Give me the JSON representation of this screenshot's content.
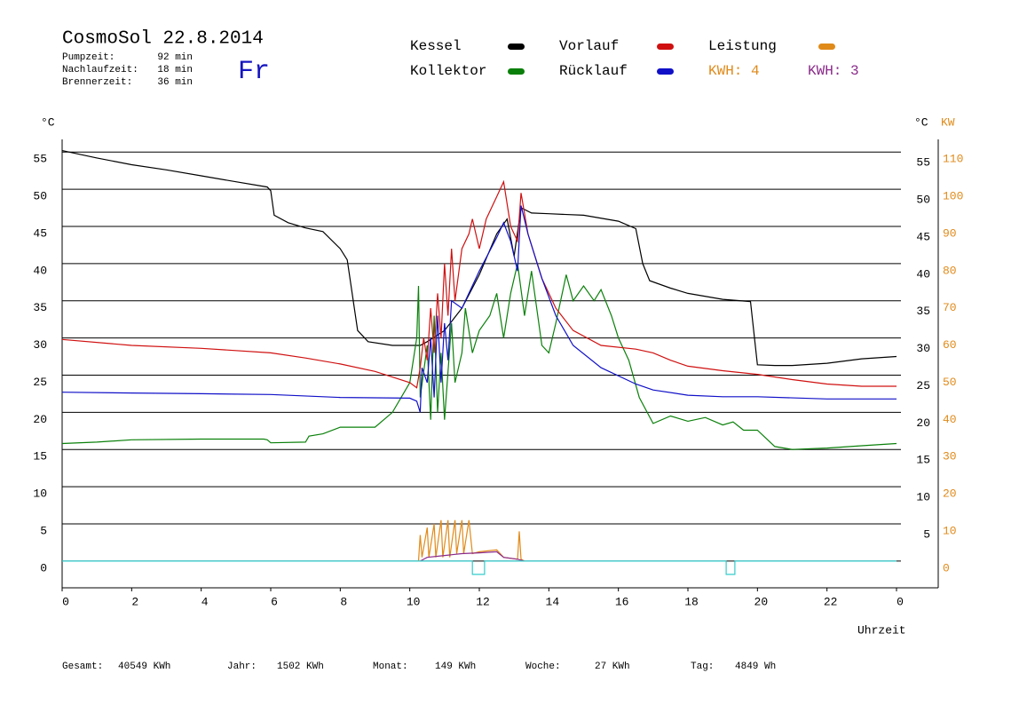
{
  "chart_data": {
    "type": "line",
    "title": "CosmoSol 22.8.2014",
    "weekday": "Fr",
    "times": [
      {
        "label": "Pumpzeit:",
        "value": "92 min"
      },
      {
        "label": "Nachlaufzeit:",
        "value": "18 min"
      },
      {
        "label": "Brennerzeit:",
        "value": "36 min"
      }
    ],
    "kwh_labels": [
      {
        "text": "KWH: 4",
        "color": "#e08a1a"
      },
      {
        "text": "KWH: 3",
        "color": "#8a2a8a"
      }
    ],
    "y_label": "°C",
    "y_right_label": "°C",
    "y2_label": "KW",
    "x_label": "Uhrzeit",
    "xlim": [
      0,
      24
    ],
    "xticks": [
      0,
      2,
      4,
      6,
      8,
      10,
      12,
      14,
      16,
      18,
      20,
      22,
      {
        "value": 24,
        "label": "0"
      }
    ],
    "ylim": [
      -3.6,
      56.7
    ],
    "yticks": [
      0,
      5,
      10,
      15,
      20,
      25,
      30,
      35,
      40,
      45,
      50,
      55
    ],
    "yticks_right": [
      5,
      10,
      15,
      20,
      25,
      30,
      35,
      40,
      45,
      50,
      55
    ],
    "y2lim": [
      -7.2,
      113.4
    ],
    "y2ticks": [
      0,
      10,
      20,
      30,
      40,
      50,
      60,
      70,
      80,
      90,
      100,
      110
    ],
    "grid": true,
    "series": [
      {
        "name": "Kessel",
        "color": "#000000",
        "x": [
          0,
          1,
          2,
          3,
          4,
          5,
          5.9,
          6.0,
          6.1,
          6.5,
          7,
          7.5,
          8,
          8.2,
          8.5,
          8.8,
          9.5,
          10.3,
          10.5,
          11,
          11.5,
          12,
          12.5,
          12.8,
          13.0,
          13.2,
          13.5,
          14,
          15,
          16,
          16.5,
          16.7,
          16.9,
          17.5,
          18,
          19,
          19.8,
          20.0,
          20.5,
          21,
          22,
          23,
          24
        ],
        "values": [
          55.2,
          54.2,
          53.3,
          52.6,
          51.8,
          51,
          50.3,
          49.8,
          46.5,
          45.5,
          44.8,
          44.3,
          42,
          40.5,
          31,
          29.5,
          29,
          29,
          29.5,
          31,
          34,
          38.5,
          44,
          46,
          41,
          47.5,
          46.8,
          46.7,
          46.5,
          45.7,
          44.7,
          40,
          37.7,
          36.7,
          36,
          35.2,
          34.9,
          26.4,
          26.3,
          26.3,
          26.6,
          27.2,
          27.5
        ]
      },
      {
        "name": "Kollektor",
        "color": "#0a800a",
        "x": [
          0,
          1,
          2,
          4,
          5.8,
          5.9,
          6,
          7,
          7.1,
          7.5,
          8,
          9,
          9.5,
          10,
          10.2,
          10.25,
          10.3,
          10.5,
          10.6,
          10.7,
          10.8,
          10.9,
          11,
          11.2,
          11.3,
          11.5,
          11.6,
          11.8,
          12,
          12.3,
          12.5,
          12.7,
          12.9,
          13.1,
          13.3,
          13.5,
          13.8,
          14,
          14.2,
          14.5,
          14.7,
          15,
          15.3,
          15.5,
          15.8,
          16,
          16.3,
          16.6,
          17,
          17.5,
          18,
          18.5,
          19,
          19.3,
          19.6,
          20,
          20.5,
          21,
          22,
          23,
          24
        ],
        "values": [
          15.8,
          16,
          16.3,
          16.4,
          16.4,
          16.3,
          15.9,
          16,
          16.8,
          17.1,
          18,
          18,
          20,
          24,
          30,
          37,
          22,
          29,
          19,
          33,
          20,
          28,
          19,
          32,
          24,
          28,
          34,
          28,
          31,
          33,
          36,
          30,
          36,
          40,
          33,
          39,
          29,
          28,
          32,
          38.5,
          35,
          37,
          35,
          36.5,
          33,
          30,
          27,
          22,
          18.5,
          19.5,
          18.8,
          19.3,
          18.3,
          18.7,
          17.6,
          17.6,
          15.4,
          15,
          15.2,
          15.5,
          15.8
        ]
      },
      {
        "name": "Vorlauf",
        "color": "#d01010",
        "x": [
          0,
          2,
          4,
          6,
          7,
          8,
          9,
          10,
          10.2,
          10.3,
          10.4,
          10.5,
          10.6,
          10.7,
          10.8,
          10.9,
          11,
          11.1,
          11.2,
          11.3,
          11.5,
          11.7,
          11.8,
          12,
          12.2,
          12.5,
          12.7,
          12.9,
          13.1,
          13.2,
          13.4,
          13.8,
          14.2,
          14.7,
          15.5,
          16.5,
          17,
          17.5,
          18,
          19,
          20,
          21,
          22,
          23,
          24
        ],
        "values": [
          29.8,
          29,
          28.6,
          28,
          27.3,
          26.5,
          25.5,
          24,
          23.3,
          26,
          30,
          27,
          34,
          28,
          36,
          30,
          40,
          33,
          42,
          35,
          42,
          44,
          46,
          42,
          46,
          49,
          51,
          45,
          43,
          49.5,
          44,
          38,
          34,
          31,
          29,
          28.5,
          28,
          27,
          26.2,
          25.6,
          25.1,
          24.4,
          23.8,
          23.5,
          23.5
        ]
      },
      {
        "name": "Rücklauf",
        "color": "#1010c8",
        "x": [
          0,
          2,
          4,
          6,
          8,
          10,
          10.2,
          10.3,
          10.35,
          10.5,
          10.6,
          10.7,
          10.8,
          10.9,
          11,
          11.1,
          11.2,
          11.5,
          12,
          12.5,
          12.7,
          12.9,
          13.1,
          13.2,
          13.4,
          13.8,
          14.2,
          14.7,
          15.5,
          16.5,
          17,
          18,
          19,
          20,
          22,
          24
        ],
        "values": [
          22.7,
          22.6,
          22.5,
          22.4,
          22.0,
          21.9,
          21.5,
          20,
          26,
          24,
          30,
          22,
          33,
          24,
          32,
          27,
          35,
          34,
          39,
          43.5,
          45.5,
          43,
          39,
          47.8,
          44,
          38,
          33,
          29,
          26,
          23.8,
          23,
          22.3,
          22.1,
          22.1,
          21.8,
          21.8
        ]
      },
      {
        "name": "Leistung",
        "color": "#e08a1a",
        "axis": "y2",
        "x": [
          10.25,
          10.3,
          10.35,
          10.5,
          10.55,
          10.7,
          10.75,
          10.9,
          10.95,
          11.1,
          11.15,
          11.3,
          11.35,
          11.5,
          11.55,
          11.7,
          11.8,
          12.0,
          12.5,
          12.7,
          13.1,
          13.15,
          13.2,
          13.3
        ],
        "values": [
          0,
          7,
          1,
          9,
          1,
          10,
          1,
          11,
          1,
          11,
          1,
          11,
          2,
          11,
          2,
          11,
          2,
          2.5,
          3,
          1,
          0.5,
          8,
          0.5,
          0
        ]
      },
      {
        "color": "#8a2a8a",
        "axis": "y2",
        "x": [
          10.3,
          10.5,
          11,
          11.5,
          12,
          12.5,
          12.7,
          13.1,
          13.3
        ],
        "values": [
          0,
          1,
          1.5,
          2,
          2.2,
          2.5,
          1,
          0.5,
          0
        ]
      },
      {
        "color": "#33cccc",
        "x": [
          0,
          11.8,
          11.8,
          12.15,
          12.15,
          19.1,
          19.1,
          19.35,
          19.35,
          24
        ],
        "values": [
          0,
          0,
          -1.8,
          -1.8,
          0,
          0,
          -1.8,
          -1.8,
          0,
          0
        ]
      }
    ],
    "footer": [
      {
        "label": "Gesamt:",
        "value": "40549 KWh"
      },
      {
        "label": "Jahr:",
        "value": "1502 KWh"
      },
      {
        "label": "Monat:",
        "value": "149 KWh"
      },
      {
        "label": "Woche:",
        "value": "27 KWh"
      },
      {
        "label": "Tag:",
        "value": "4849 Wh"
      }
    ]
  }
}
